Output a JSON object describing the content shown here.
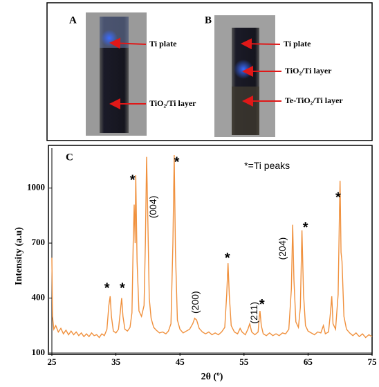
{
  "photos": [
    {
      "label": "A",
      "callouts": [
        "Ti plate",
        "TiO₂/Ti layer"
      ]
    },
    {
      "label": "B",
      "callouts": [
        "Ti plate",
        "TiO₂/Ti layer",
        "Te-TiO₂/Ti layer"
      ]
    }
  ],
  "chart_data": {
    "type": "line",
    "panel_label": "C",
    "xlabel": "2θ (º)",
    "ylabel": "Intensity (a.u)",
    "color": "#f0903c",
    "xlim": [
      25,
      75
    ],
    "xticks": [
      25,
      35,
      45,
      55,
      65,
      75
    ],
    "ylim": [
      100,
      1180
    ],
    "yticks": [
      100,
      400,
      700,
      1000
    ],
    "x": [
      25,
      25.1,
      25.3,
      25.6,
      26,
      26.4,
      26.8,
      27.2,
      27.6,
      28,
      28.4,
      28.8,
      29.2,
      29.6,
      30,
      30.4,
      30.8,
      31.2,
      31.6,
      32,
      32.4,
      32.8,
      33.2,
      33.6,
      33.9,
      34.1,
      34.3,
      34.6,
      35,
      35.4,
      35.7,
      35.9,
      36.1,
      36.4,
      36.8,
      37.2,
      37.5,
      37.7,
      37.85,
      38,
      38.1,
      38.3,
      38.6,
      39,
      39.4,
      39.6,
      39.8,
      40,
      40.2,
      40.5,
      40.9,
      41.3,
      41.8,
      42.3,
      42.8,
      43.2,
      43.6,
      43.9,
      44.1,
      44.3,
      44.6,
      45,
      45.5,
      46,
      46.5,
      47,
      47.3,
      47.6,
      48,
      48.5,
      49,
      49.5,
      50,
      50.5,
      51,
      51.5,
      52,
      52.3,
      52.5,
      52.7,
      53,
      53.5,
      54,
      54.4,
      54.7,
      55.2,
      55.6,
      55.9,
      56.2,
      56.7,
      57.2,
      57.4,
      57.5,
      57.7,
      58,
      58.5,
      59,
      59.5,
      60,
      60.5,
      61,
      61.5,
      62,
      62.4,
      62.6,
      62.8,
      63.1,
      63.5,
      63.8,
      64.05,
      64.3,
      64.6,
      65,
      65.5,
      66,
      66.5,
      67,
      67.4,
      67.7,
      68.2,
      68.5,
      68.7,
      68.9,
      69.3,
      69.7,
      69.9,
      70,
      70.15,
      70.3,
      70.6,
      71,
      71.5,
      72,
      72.5,
      73,
      73.5,
      74,
      74.5,
      75
    ],
    "values": [
      620,
      300,
      230,
      250,
      215,
      235,
      205,
      225,
      200,
      220,
      200,
      215,
      195,
      210,
      190,
      205,
      190,
      210,
      195,
      200,
      185,
      205,
      195,
      230,
      360,
      410,
      300,
      220,
      210,
      230,
      330,
      400,
      300,
      230,
      220,
      240,
      320,
      700,
      910,
      700,
      1070,
      600,
      330,
      300,
      360,
      700,
      1170,
      800,
      400,
      290,
      240,
      225,
      210,
      215,
      205,
      220,
      260,
      700,
      1180,
      650,
      280,
      230,
      210,
      220,
      230,
      260,
      290,
      280,
      235,
      215,
      205,
      215,
      200,
      210,
      200,
      215,
      240,
      420,
      590,
      420,
      250,
      215,
      205,
      235,
      215,
      200,
      230,
      260,
      215,
      200,
      215,
      300,
      330,
      250,
      205,
      195,
      210,
      195,
      205,
      195,
      210,
      205,
      230,
      450,
      800,
      500,
      270,
      240,
      350,
      770,
      420,
      250,
      220,
      210,
      200,
      215,
      210,
      250,
      205,
      215,
      320,
      410,
      260,
      230,
      420,
      860,
      1040,
      650,
      600,
      300,
      230,
      210,
      195,
      210,
      190,
      205,
      185,
      200,
      190
    ],
    "annotations": [
      {
        "text": "*=Ti peaks",
        "x": 58.6,
        "y": 1118
      },
      {
        "text": "(004)",
        "x": 40.9,
        "y": 897,
        "rotate": true
      },
      {
        "text": "(200)",
        "x": 47.5,
        "y": 377,
        "rotate": true
      },
      {
        "text": "(211)",
        "x": 56.7,
        "y": 320,
        "rotate": true
      },
      {
        "text": "(204)",
        "x": 61.1,
        "y": 670,
        "rotate": true
      },
      {
        "text": "*",
        "x": 33.6,
        "y": 450
      },
      {
        "text": "*",
        "x": 36,
        "y": 450
      },
      {
        "text": "*",
        "x": 37.6,
        "y": 1040
      },
      {
        "text": "*",
        "x": 44.5,
        "y": 1137
      },
      {
        "text": "*",
        "x": 52.4,
        "y": 615
      },
      {
        "text": "*",
        "x": 57.8,
        "y": 362
      },
      {
        "text": "*",
        "x": 64.6,
        "y": 780
      },
      {
        "text": "*",
        "x": 69.7,
        "y": 945
      }
    ]
  }
}
